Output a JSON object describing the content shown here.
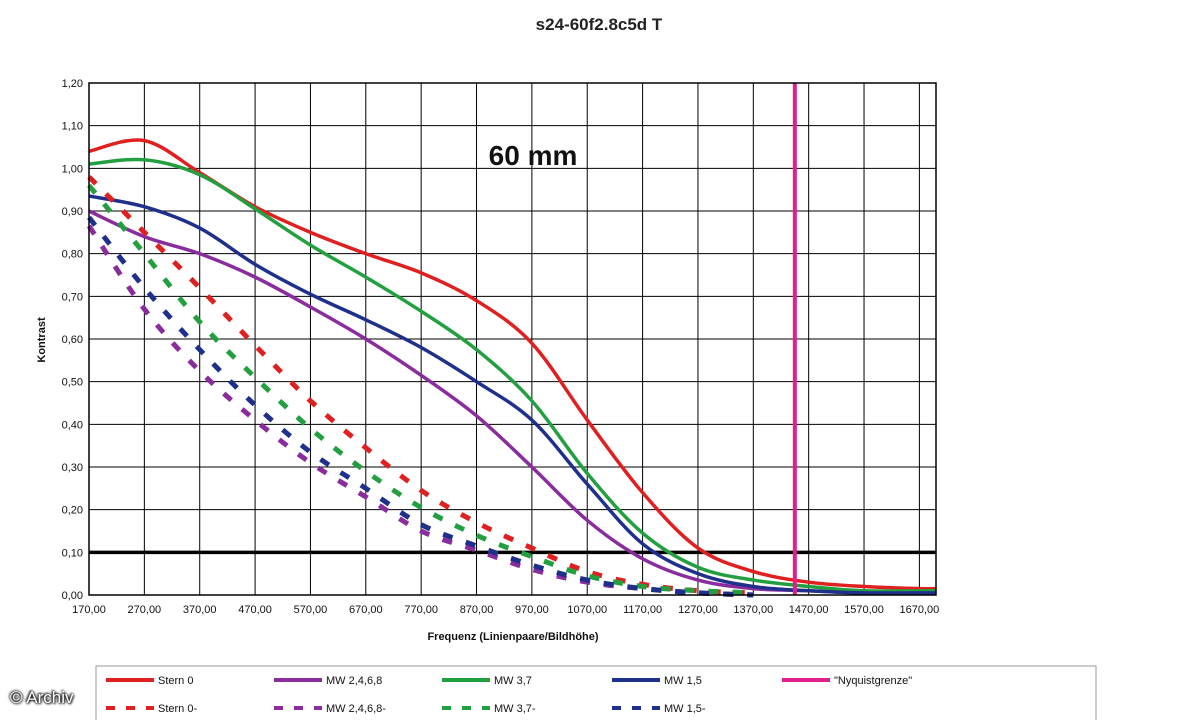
{
  "chart_data": {
    "type": "line",
    "title": "s24-60f2.8c5d T",
    "annotation": "60 mm",
    "xlabel": "Frequenz (Linienpaare/Bildhöhe)",
    "ylabel": "Kontrast",
    "xlim": [
      170,
      1700
    ],
    "ylim": [
      0,
      1.2
    ],
    "x_ticks": [
      "170,00",
      "270,00",
      "370,00",
      "470,00",
      "570,00",
      "670,00",
      "770,00",
      "870,00",
      "970,00",
      "1070,00",
      "1170,00",
      "1270,00",
      "1370,00",
      "1470,00",
      "1570,00",
      "1670,00"
    ],
    "y_ticks": [
      "0,00",
      "0,10",
      "0,20",
      "0,30",
      "0,40",
      "0,50",
      "0,60",
      "0,70",
      "0,80",
      "0,90",
      "1,00",
      "1,10",
      "1,20"
    ],
    "grid": true,
    "legend_position": "bottom",
    "reference_line_y": 0.1,
    "nyquist_x": 1445,
    "series": [
      {
        "name": "Stern 0",
        "color": "#e02020",
        "dashed": false,
        "points": [
          [
            170,
            1.04
          ],
          [
            270,
            1.065
          ],
          [
            370,
            0.99
          ],
          [
            470,
            0.91
          ],
          [
            570,
            0.85
          ],
          [
            670,
            0.8
          ],
          [
            770,
            0.755
          ],
          [
            870,
            0.69
          ],
          [
            970,
            0.59
          ],
          [
            1070,
            0.41
          ],
          [
            1170,
            0.24
          ],
          [
            1270,
            0.11
          ],
          [
            1370,
            0.055
          ],
          [
            1470,
            0.03
          ],
          [
            1570,
            0.02
          ],
          [
            1670,
            0.015
          ],
          [
            1700,
            0.015
          ]
        ]
      },
      {
        "name": "MW 2,4,6,8",
        "color": "#8a2c9e",
        "dashed": false,
        "points": [
          [
            170,
            0.9
          ],
          [
            270,
            0.84
          ],
          [
            370,
            0.8
          ],
          [
            470,
            0.745
          ],
          [
            570,
            0.675
          ],
          [
            670,
            0.6
          ],
          [
            770,
            0.515
          ],
          [
            870,
            0.42
          ],
          [
            970,
            0.3
          ],
          [
            1070,
            0.175
          ],
          [
            1170,
            0.085
          ],
          [
            1270,
            0.035
          ],
          [
            1370,
            0.015
          ],
          [
            1470,
            0.01
          ],
          [
            1570,
            0.005
          ],
          [
            1700,
            0.005
          ]
        ]
      },
      {
        "name": "MW 3,7",
        "color": "#22a040",
        "dashed": false,
        "points": [
          [
            170,
            1.01
          ],
          [
            270,
            1.02
          ],
          [
            370,
            0.985
          ],
          [
            470,
            0.905
          ],
          [
            570,
            0.82
          ],
          [
            670,
            0.745
          ],
          [
            770,
            0.665
          ],
          [
            870,
            0.575
          ],
          [
            970,
            0.455
          ],
          [
            1070,
            0.285
          ],
          [
            1170,
            0.145
          ],
          [
            1270,
            0.065
          ],
          [
            1370,
            0.035
          ],
          [
            1470,
            0.02
          ],
          [
            1570,
            0.01
          ],
          [
            1700,
            0.01
          ]
        ]
      },
      {
        "name": "MW 1,5",
        "color": "#1f2f8c",
        "dashed": false,
        "points": [
          [
            170,
            0.935
          ],
          [
            270,
            0.91
          ],
          [
            370,
            0.86
          ],
          [
            470,
            0.775
          ],
          [
            570,
            0.705
          ],
          [
            670,
            0.645
          ],
          [
            770,
            0.58
          ],
          [
            870,
            0.5
          ],
          [
            970,
            0.41
          ],
          [
            1070,
            0.26
          ],
          [
            1170,
            0.12
          ],
          [
            1270,
            0.05
          ],
          [
            1370,
            0.02
          ],
          [
            1470,
            0.01
          ],
          [
            1570,
            0.005
          ],
          [
            1700,
            0.005
          ]
        ]
      },
      {
        "name": "Stern 0-",
        "color": "#e02020",
        "dashed": true,
        "points": [
          [
            170,
            0.98
          ],
          [
            270,
            0.85
          ],
          [
            370,
            0.72
          ],
          [
            470,
            0.585
          ],
          [
            570,
            0.455
          ],
          [
            670,
            0.345
          ],
          [
            770,
            0.245
          ],
          [
            870,
            0.17
          ],
          [
            970,
            0.11
          ],
          [
            1070,
            0.055
          ],
          [
            1170,
            0.025
          ],
          [
            1270,
            0.01
          ],
          [
            1370,
            0.005
          ]
        ]
      },
      {
        "name": "MW 2,4,6,8-",
        "color": "#8a2c9e",
        "dashed": true,
        "points": [
          [
            170,
            0.865
          ],
          [
            270,
            0.67
          ],
          [
            370,
            0.525
          ],
          [
            470,
            0.41
          ],
          [
            570,
            0.31
          ],
          [
            670,
            0.23
          ],
          [
            770,
            0.15
          ],
          [
            870,
            0.105
          ],
          [
            970,
            0.06
          ],
          [
            1070,
            0.03
          ],
          [
            1170,
            0.015
          ],
          [
            1270,
            0.005
          ],
          [
            1370,
            0.0
          ]
        ]
      },
      {
        "name": "MW 3,7-",
        "color": "#22a040",
        "dashed": true,
        "points": [
          [
            170,
            0.96
          ],
          [
            270,
            0.8
          ],
          [
            370,
            0.64
          ],
          [
            470,
            0.51
          ],
          [
            570,
            0.39
          ],
          [
            670,
            0.29
          ],
          [
            770,
            0.205
          ],
          [
            870,
            0.14
          ],
          [
            970,
            0.09
          ],
          [
            1070,
            0.045
          ],
          [
            1170,
            0.02
          ],
          [
            1270,
            0.01
          ],
          [
            1370,
            0.005
          ]
        ]
      },
      {
        "name": "MW 1,5-",
        "color": "#1f2f8c",
        "dashed": true,
        "points": [
          [
            170,
            0.885
          ],
          [
            270,
            0.72
          ],
          [
            370,
            0.575
          ],
          [
            470,
            0.445
          ],
          [
            570,
            0.335
          ],
          [
            670,
            0.25
          ],
          [
            770,
            0.165
          ],
          [
            870,
            0.115
          ],
          [
            970,
            0.07
          ],
          [
            1070,
            0.035
          ],
          [
            1170,
            0.015
          ],
          [
            1270,
            0.005
          ],
          [
            1370,
            0.0
          ]
        ]
      },
      {
        "name": "\"Nyquistgrenze\"",
        "color": "#e0208a",
        "dashed": false,
        "points": []
      }
    ]
  },
  "watermark": "© Archiv"
}
